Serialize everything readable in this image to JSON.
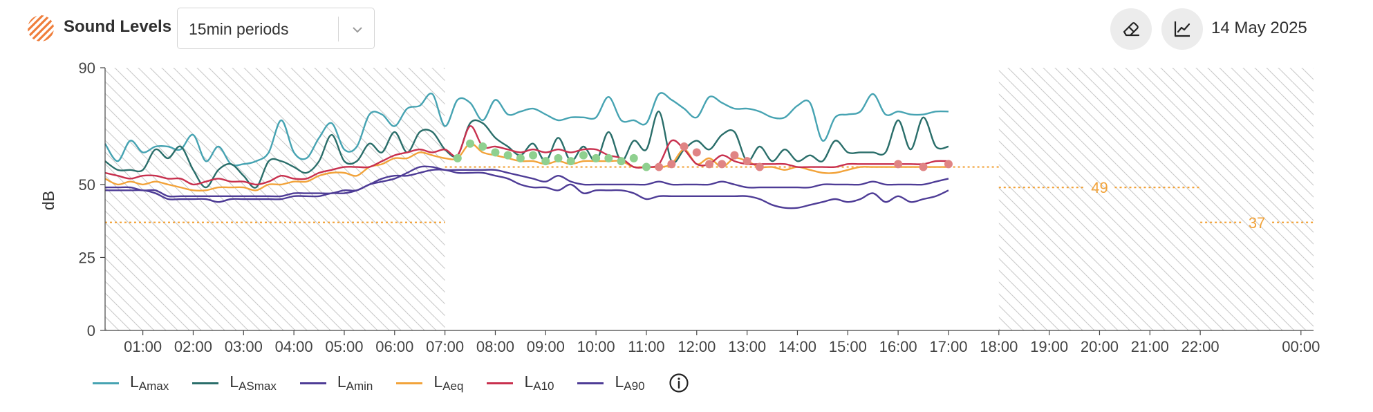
{
  "header": {
    "logo_icon": "hatched-circle-logo",
    "title": "Sound Levels",
    "period_select": {
      "value": "15min periods",
      "icon": "chevron-down-icon"
    },
    "eraser_icon": "eraser-icon",
    "chart_icon": "line-chart-icon",
    "date": "14 May 2025"
  },
  "legend": {
    "info_icon": "info-icon",
    "items": [
      {
        "main": "L",
        "sub": "Amax",
        "color": "#46a3b2"
      },
      {
        "main": "L",
        "sub": "ASmax",
        "color": "#2a6e6a"
      },
      {
        "main": "L",
        "sub": "Amin",
        "color": "#4e3c96"
      },
      {
        "main": "L",
        "sub": "Aeq",
        "color": "#f2a33a"
      },
      {
        "main": "L",
        "sub": "A10",
        "color": "#c8304e"
      },
      {
        "main": "L",
        "sub": "A90",
        "color": "#4e3c96"
      }
    ]
  },
  "chart_data": {
    "type": "line",
    "ylabel": "dB",
    "ylim": [
      0,
      90
    ],
    "yticks": [
      0,
      25,
      50,
      90
    ],
    "x_range_hours": [
      0.25,
      24.25
    ],
    "xticks": [
      "01:00",
      "02:00",
      "03:00",
      "04:00",
      "05:00",
      "06:00",
      "07:00",
      "08:00",
      "09:00",
      "10:00",
      "11:00",
      "12:00",
      "13:00",
      "14:00",
      "15:00",
      "16:00",
      "17:00",
      "18:00",
      "19:00",
      "20:00",
      "21:00",
      "22:00",
      "00:00"
    ],
    "xtick_hours": [
      1,
      2,
      3,
      4,
      5,
      6,
      7,
      8,
      9,
      10,
      11,
      12,
      13,
      14,
      15,
      16,
      17,
      18,
      19,
      20,
      21,
      22,
      24
    ],
    "hatched_periods": [
      [
        0.25,
        7
      ],
      [
        18,
        24.25
      ]
    ],
    "colors": {
      "hatch": "#c9c9c9",
      "limit": "#f2a33a",
      "below_marker": "#8fd08f",
      "above_marker": "#e08484",
      "axis": "#444444"
    },
    "limits": [
      {
        "from": 0.25,
        "to": 7,
        "value": 37
      },
      {
        "from": 7,
        "to": 18,
        "value": 56
      },
      {
        "from": 18,
        "to": 22,
        "value": 49,
        "label": "49"
      },
      {
        "from": 22,
        "to": 24.25,
        "value": 37,
        "label": "37"
      }
    ],
    "series": [
      {
        "name": "LAmax",
        "color": "#46a3b2",
        "x": [
          0.25,
          0.5,
          0.75,
          1.0,
          1.25,
          1.5,
          1.75,
          2.0,
          2.25,
          2.5,
          2.75,
          3.0,
          3.25,
          3.5,
          3.75,
          4.0,
          4.25,
          4.5,
          4.75,
          5.0,
          5.25,
          5.5,
          5.75,
          6.0,
          6.25,
          6.5,
          6.75,
          7.0,
          7.25,
          7.5,
          7.75,
          8.0,
          8.25,
          8.5,
          8.75,
          9.0,
          9.25,
          9.5,
          9.75,
          10.0,
          10.25,
          10.5,
          10.75,
          11.0,
          11.25,
          11.5,
          11.75,
          12.0,
          12.25,
          12.5,
          12.75,
          13.0,
          13.25,
          13.5,
          13.75,
          14.0,
          14.25,
          14.5,
          14.75,
          15.0,
          15.25,
          15.5,
          15.75,
          16.0,
          16.25,
          16.5,
          16.75,
          17.0
        ],
        "y": [
          64,
          58,
          65,
          61,
          63,
          63,
          62,
          67,
          58,
          63,
          57,
          57,
          58,
          61,
          72,
          61,
          59,
          66,
          71,
          62,
          63,
          74,
          74,
          70,
          76,
          77,
          81,
          70,
          79,
          78,
          72,
          79,
          74,
          75,
          76,
          74,
          72,
          73,
          73,
          73,
          80,
          72,
          72,
          71,
          81,
          79,
          76,
          73,
          80,
          78,
          76,
          76,
          75,
          73,
          73,
          77,
          78,
          65,
          73,
          74,
          75,
          81,
          74,
          75,
          74,
          74,
          75,
          75
        ]
      },
      {
        "name": "LASmax",
        "color": "#2a6e6a",
        "x": [
          0.25,
          0.5,
          0.75,
          1.0,
          1.25,
          1.5,
          1.75,
          2.0,
          2.25,
          2.5,
          2.75,
          3.0,
          3.25,
          3.5,
          3.75,
          4.0,
          4.25,
          4.5,
          4.75,
          5.0,
          5.25,
          5.5,
          5.75,
          6.0,
          6.25,
          6.5,
          6.75,
          7.0,
          7.25,
          7.5,
          7.75,
          8.0,
          8.25,
          8.5,
          8.75,
          9.0,
          9.25,
          9.5,
          9.75,
          10.0,
          10.25,
          10.5,
          10.75,
          11.0,
          11.25,
          11.5,
          11.75,
          12.0,
          12.25,
          12.5,
          12.75,
          13.0,
          13.25,
          13.5,
          13.75,
          14.0,
          14.25,
          14.5,
          14.75,
          15.0,
          15.25,
          15.5,
          15.75,
          16.0,
          16.25,
          16.5,
          16.75,
          17.0
        ],
        "y": [
          58,
          55,
          55,
          55,
          62,
          59,
          63,
          55,
          49,
          55,
          57,
          53,
          49,
          58,
          58,
          56,
          54,
          58,
          67,
          58,
          58,
          64,
          61,
          68,
          61,
          68,
          68,
          62,
          60,
          71,
          71,
          66,
          63,
          60,
          64,
          58,
          66,
          58,
          63,
          58,
          68,
          58,
          65,
          62,
          75,
          58,
          62,
          65,
          62,
          67,
          68,
          58,
          63,
          58,
          62,
          58,
          60,
          58,
          65,
          61,
          61,
          61,
          61,
          72,
          62,
          73,
          63,
          63
        ]
      },
      {
        "name": "LAmin",
        "color": "#4e3c96",
        "x": [
          0.25,
          0.5,
          0.75,
          1.0,
          1.25,
          1.5,
          1.75,
          2.0,
          2.25,
          2.5,
          2.75,
          3.0,
          3.25,
          3.5,
          3.75,
          4.0,
          4.25,
          4.5,
          4.75,
          5.0,
          5.25,
          5.5,
          5.75,
          6.0,
          6.25,
          6.5,
          6.75,
          7.0,
          7.25,
          7.5,
          7.75,
          8.0,
          8.25,
          8.5,
          8.75,
          9.0,
          9.25,
          9.5,
          9.75,
          10.0,
          10.25,
          10.5,
          10.75,
          11.0,
          11.25,
          11.5,
          11.75,
          12.0,
          12.25,
          12.5,
          12.75,
          13.0,
          13.25,
          13.5,
          13.75,
          14.0,
          14.25,
          14.5,
          14.75,
          15.0,
          15.25,
          15.5,
          15.75,
          16.0,
          16.25,
          16.5,
          16.75,
          17.0
        ],
        "y": [
          48,
          48,
          48,
          48,
          47,
          45,
          45,
          45,
          45,
          44,
          45,
          45,
          45,
          45,
          45,
          46,
          46,
          46,
          47,
          47,
          48,
          50,
          52,
          53,
          53,
          54,
          55,
          55,
          54,
          54,
          54,
          53,
          52,
          50,
          49,
          49,
          48,
          50,
          47,
          48,
          48,
          48,
          47,
          45,
          46,
          46,
          46,
          46,
          46,
          46,
          46,
          46,
          45,
          43,
          42,
          42,
          43,
          44,
          45,
          44,
          45,
          47,
          44,
          46,
          44,
          45,
          46,
          48
        ]
      },
      {
        "name": "LAeq",
        "color": "#f2a33a",
        "x": [
          0.25,
          0.5,
          0.75,
          1.0,
          1.25,
          1.5,
          1.75,
          2.0,
          2.25,
          2.5,
          2.75,
          3.0,
          3.25,
          3.5,
          3.75,
          4.0,
          4.25,
          4.5,
          4.75,
          5.0,
          5.25,
          5.5,
          5.75,
          6.0,
          6.25,
          6.5,
          6.75,
          7.0,
          7.25,
          7.5,
          7.75,
          8.0,
          8.25,
          8.5,
          8.75,
          9.0,
          9.25,
          9.5,
          9.75,
          10.0,
          10.25,
          10.5,
          10.75,
          11.0,
          11.25,
          11.5,
          11.75,
          12.0,
          12.25,
          12.5,
          12.75,
          13.0,
          13.25,
          13.5,
          13.75,
          14.0,
          14.25,
          14.5,
          14.75,
          15.0,
          15.25,
          15.5,
          15.75,
          16.0,
          16.25,
          16.5,
          16.75,
          17.0
        ],
        "y": [
          52,
          50,
          51,
          50,
          51,
          50,
          49,
          48,
          48,
          49,
          49,
          49,
          48,
          50,
          50,
          51,
          51,
          53,
          54,
          54,
          53,
          56,
          57,
          59,
          59,
          61,
          60,
          59,
          59,
          64,
          61,
          60,
          59,
          58,
          58,
          57,
          58,
          57,
          58,
          58,
          58,
          58,
          56,
          56,
          56,
          57,
          62,
          57,
          59,
          56,
          59,
          58,
          56,
          56,
          55,
          56,
          55,
          54,
          54,
          55,
          56,
          56,
          56,
          56,
          56,
          56,
          56,
          56
        ]
      },
      {
        "name": "LA10",
        "color": "#c8304e",
        "x": [
          0.25,
          0.5,
          0.75,
          1.0,
          1.25,
          1.5,
          1.75,
          2.0,
          2.25,
          2.5,
          2.75,
          3.0,
          3.25,
          3.5,
          3.75,
          4.0,
          4.25,
          4.5,
          4.75,
          5.0,
          5.25,
          5.5,
          5.75,
          6.0,
          6.25,
          6.5,
          6.75,
          7.0,
          7.25,
          7.5,
          7.75,
          8.0,
          8.25,
          8.5,
          8.75,
          9.0,
          9.25,
          9.5,
          9.75,
          10.0,
          10.25,
          10.5,
          10.75,
          11.0,
          11.25,
          11.5,
          11.75,
          12.0,
          12.25,
          12.5,
          12.75,
          13.0,
          13.25,
          13.5,
          13.75,
          14.0,
          14.25,
          14.5,
          14.75,
          15.0,
          15.25,
          15.5,
          15.75,
          16.0,
          16.25,
          16.5,
          16.75,
          17.0
        ],
        "y": [
          54,
          53,
          52,
          53,
          53,
          52,
          52,
          50,
          51,
          52,
          51,
          51,
          50,
          51,
          53,
          52,
          52,
          54,
          55,
          56,
          56,
          56,
          58,
          60,
          61,
          62,
          61,
          62,
          60,
          70,
          63,
          63,
          62,
          61,
          62,
          61,
          62,
          61,
          62,
          62,
          60,
          59,
          56,
          56,
          57,
          65,
          62,
          57,
          57,
          60,
          58,
          57,
          57,
          57,
          57,
          56,
          56,
          56,
          56,
          57,
          57,
          57,
          57,
          57,
          57,
          57,
          58,
          58
        ]
      },
      {
        "name": "LA90",
        "color": "#4e3c96",
        "x": [
          0.25,
          0.5,
          0.75,
          1.0,
          1.25,
          1.5,
          1.75,
          2.0,
          2.25,
          2.5,
          2.75,
          3.0,
          3.25,
          3.5,
          3.75,
          4.0,
          4.25,
          4.5,
          4.75,
          5.0,
          5.25,
          5.5,
          5.75,
          6.0,
          6.25,
          6.5,
          6.75,
          7.0,
          7.25,
          7.5,
          7.75,
          8.0,
          8.25,
          8.5,
          8.75,
          9.0,
          9.25,
          9.5,
          9.75,
          10.0,
          10.25,
          10.5,
          10.75,
          11.0,
          11.25,
          11.5,
          11.75,
          12.0,
          12.25,
          12.5,
          12.75,
          13.0,
          13.25,
          13.5,
          13.75,
          14.0,
          14.25,
          14.5,
          14.75,
          15.0,
          15.25,
          15.5,
          15.75,
          16.0,
          16.25,
          16.5,
          16.75,
          17.0
        ],
        "y": [
          49,
          49,
          49,
          48,
          48,
          46,
          46,
          46,
          46,
          46,
          46,
          46,
          46,
          46,
          46,
          47,
          47,
          47,
          47,
          48,
          48,
          50,
          51,
          52,
          54,
          56,
          56,
          55,
          55,
          55,
          55,
          55,
          54,
          53,
          52,
          51,
          53,
          51,
          50,
          50,
          50,
          50,
          50,
          50,
          51,
          50,
          50,
          50,
          50,
          51,
          50,
          49,
          49,
          49,
          49,
          49,
          49,
          50,
          50,
          50,
          50,
          51,
          50,
          50,
          50,
          50,
          51,
          52
        ]
      }
    ],
    "markers": [
      {
        "x": 7.25,
        "y": 59,
        "state": "below"
      },
      {
        "x": 7.5,
        "y": 64,
        "state": "below"
      },
      {
        "x": 7.75,
        "y": 63,
        "state": "below"
      },
      {
        "x": 8.0,
        "y": 61,
        "state": "below"
      },
      {
        "x": 8.25,
        "y": 60,
        "state": "below"
      },
      {
        "x": 8.5,
        "y": 59,
        "state": "below"
      },
      {
        "x": 8.75,
        "y": 60,
        "state": "below"
      },
      {
        "x": 9.0,
        "y": 58,
        "state": "below"
      },
      {
        "x": 9.25,
        "y": 59,
        "state": "below"
      },
      {
        "x": 9.5,
        "y": 58,
        "state": "below"
      },
      {
        "x": 9.75,
        "y": 60,
        "state": "below"
      },
      {
        "x": 10.0,
        "y": 59,
        "state": "below"
      },
      {
        "x": 10.25,
        "y": 59,
        "state": "below"
      },
      {
        "x": 10.5,
        "y": 58,
        "state": "below"
      },
      {
        "x": 10.75,
        "y": 59,
        "state": "below"
      },
      {
        "x": 11.0,
        "y": 56,
        "state": "below"
      },
      {
        "x": 11.25,
        "y": 56,
        "state": "above"
      },
      {
        "x": 11.5,
        "y": 57,
        "state": "above"
      },
      {
        "x": 11.75,
        "y": 63,
        "state": "above"
      },
      {
        "x": 12.0,
        "y": 61,
        "state": "above"
      },
      {
        "x": 12.25,
        "y": 57,
        "state": "above"
      },
      {
        "x": 12.5,
        "y": 57,
        "state": "above"
      },
      {
        "x": 12.75,
        "y": 60,
        "state": "above"
      },
      {
        "x": 13.0,
        "y": 58,
        "state": "above"
      },
      {
        "x": 13.25,
        "y": 56,
        "state": "above"
      },
      {
        "x": 16.0,
        "y": 57,
        "state": "above"
      },
      {
        "x": 16.5,
        "y": 56,
        "state": "above"
      },
      {
        "x": 17.0,
        "y": 57,
        "state": "above"
      }
    ]
  }
}
